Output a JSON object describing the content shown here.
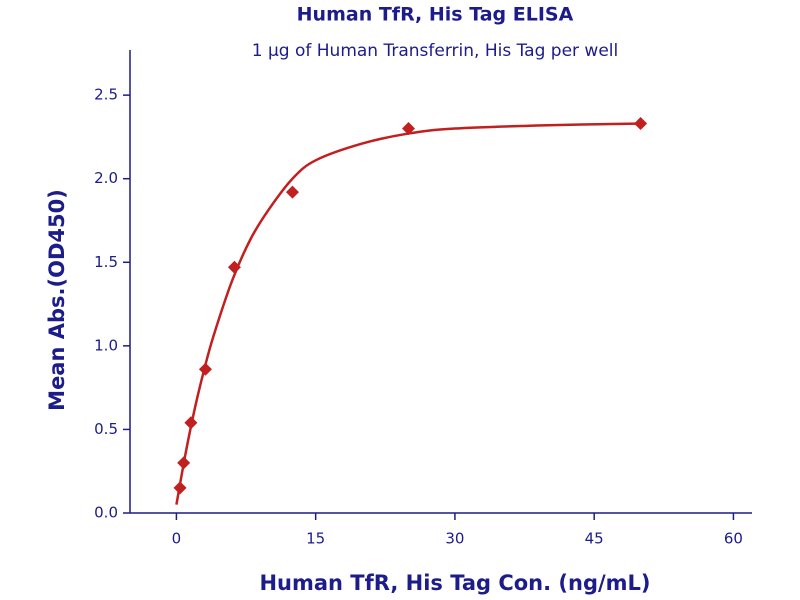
{
  "chart_data": {
    "type": "scatter",
    "title": "Human TfR, His Tag ELISA",
    "subtitle": "1 μg of Human Transferrin, His Tag per well",
    "x_label": "Human TfR, His Tag Con. (ng/mL)",
    "y_label": "Mean Abs.(OD450)",
    "xlim": [
      -5,
      62
    ],
    "ylim": [
      0,
      2.77
    ],
    "xticks": [
      0,
      15,
      30,
      45,
      60
    ],
    "yticks": [
      {
        "value": 0,
        "label": "0.0"
      },
      0.5,
      {
        "value": 1,
        "label": "1.0"
      },
      1.5,
      {
        "value": 2,
        "label": "2.0"
      },
      2.5
    ],
    "axis_color": "#1c1c8a",
    "series": [
      {
        "color": "#c0201f",
        "marker": "diamond",
        "x": [
          0.39,
          0.78,
          1.56,
          3.125,
          6.25,
          12.5,
          25,
          50
        ],
        "values": [
          0.15,
          0.3,
          0.54,
          0.86,
          1.47,
          1.92,
          2.3,
          2.33
        ]
      },
      {
        "color": "#c0201f",
        "marker": "line",
        "x": [
          0,
          1,
          2,
          3,
          4,
          6,
          8,
          10,
          12.5,
          15,
          20,
          25,
          30,
          40,
          50
        ],
        "values": [
          0.05,
          0.36,
          0.63,
          0.86,
          1.06,
          1.39,
          1.64,
          1.82,
          2.0,
          2.11,
          2.21,
          2.27,
          2.3,
          2.32,
          2.33
        ]
      }
    ]
  }
}
